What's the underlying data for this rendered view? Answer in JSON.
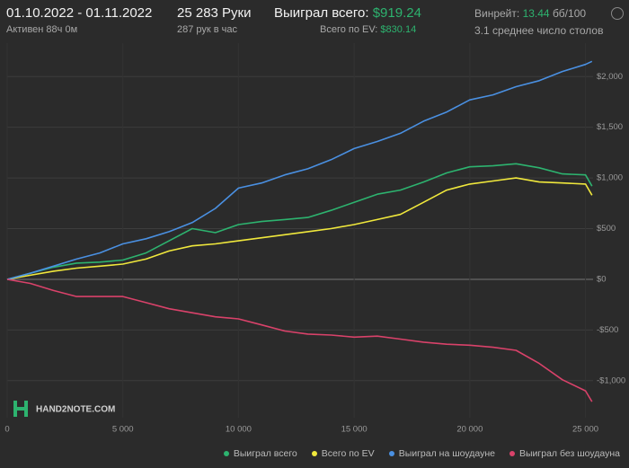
{
  "header": {
    "period": "01.10.2022 - 01.11.2022",
    "active": "Активен 88ч 0м",
    "hands": "25 283 Руки",
    "hands_per_hour": "287 рук в час",
    "won_label": "Выиграл всего:",
    "won_value": "$919.24",
    "ev_label": "Всего по EV:",
    "ev_value": "$830.14",
    "winrate_label": "Винрейт:",
    "winrate_value": "13.44",
    "winrate_unit": "бб/100",
    "tables": "3.1 среднее число столов",
    "logo": "HAND2NOTE.COM"
  },
  "chart_data": {
    "type": "line",
    "x": [
      0,
      1000,
      2000,
      3000,
      4000,
      5000,
      6000,
      7000,
      8000,
      9000,
      10000,
      11000,
      12000,
      13000,
      14000,
      15000,
      16000,
      17000,
      18000,
      19000,
      20000,
      21000,
      22000,
      23000,
      24000,
      25000,
      25283
    ],
    "xlim": [
      0,
      25600
    ],
    "xticks": [
      0,
      {
        "value": 5000,
        "label": "5 000"
      },
      {
        "value": 10000,
        "label": "10 000"
      },
      {
        "value": 15000,
        "label": "15 000"
      },
      {
        "value": 20000,
        "label": "20 000"
      },
      {
        "value": 25000,
        "label": "25 000"
      }
    ],
    "ylim": [
      -1365,
      2330
    ],
    "yticks": [
      {
        "value": 2000,
        "label": "$2,000"
      },
      {
        "value": 1500,
        "label": "$1,500"
      },
      {
        "value": 1000,
        "label": "$1,000"
      },
      {
        "value": 500,
        "label": "$500"
      },
      {
        "value": 0,
        "label": "$0"
      },
      {
        "value": -500,
        "label": "-$500"
      },
      {
        "value": -1000,
        "label": "-$1,000"
      }
    ],
    "grid": true,
    "series": [
      {
        "name": "Выиграл всего",
        "color": "#2db36f",
        "values": [
          0,
          60,
          120,
          160,
          170,
          190,
          260,
          380,
          500,
          460,
          540,
          570,
          590,
          610,
          680,
          760,
          840,
          880,
          960,
          1050,
          1110,
          1120,
          1140,
          1100,
          1040,
          1030,
          919.24
        ]
      },
      {
        "name": "Всего по EV",
        "color": "#f0e83c",
        "values": [
          0,
          40,
          80,
          110,
          130,
          150,
          200,
          280,
          330,
          350,
          380,
          410,
          440,
          470,
          500,
          540,
          590,
          640,
          760,
          880,
          940,
          970,
          1000,
          960,
          950,
          940,
          830.14
        ]
      },
      {
        "name": "Выиграл на шоудауне",
        "color": "#4a90e2",
        "values": [
          0,
          60,
          130,
          200,
          260,
          350,
          400,
          470,
          560,
          700,
          900,
          950,
          1030,
          1090,
          1180,
          1290,
          1360,
          1440,
          1560,
          1650,
          1770,
          1820,
          1900,
          1960,
          2050,
          2120,
          2150
        ]
      },
      {
        "name": "Выиграл без шоудауна",
        "color": "#d9426a",
        "values": [
          0,
          -40,
          -110,
          -170,
          -170,
          -170,
          -230,
          -290,
          -330,
          -370,
          -390,
          -450,
          -510,
          -540,
          -550,
          -570,
          -560,
          -590,
          -620,
          -640,
          -650,
          -670,
          -700,
          -830,
          -990,
          -1100,
          -1206
        ]
      }
    ]
  }
}
